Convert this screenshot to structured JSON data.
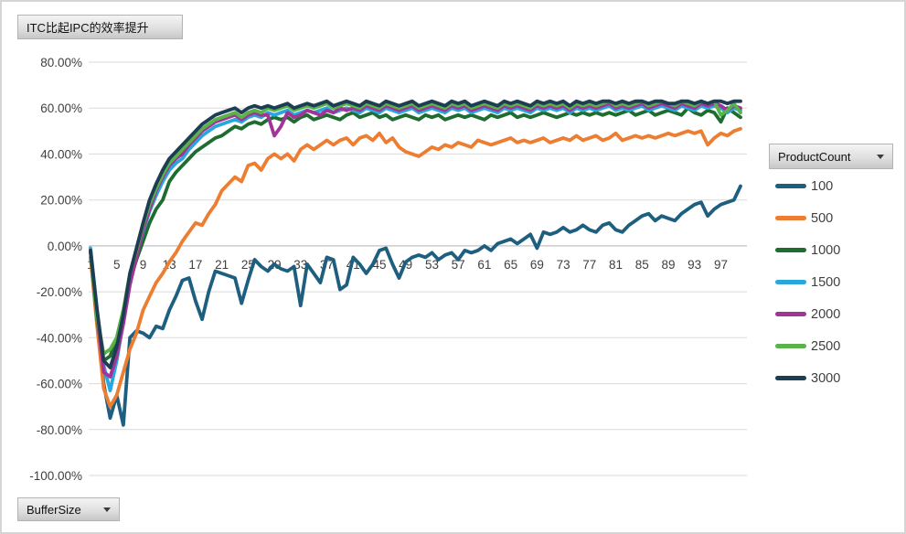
{
  "chart": {
    "value_field_button": "ITC比起IPC的效率提升",
    "legend_field_button": "ProductCount",
    "axis_field_button": "BufferSize"
  },
  "chart_data": {
    "type": "line",
    "title": "ITC比起IPC的效率提升",
    "legend_title": "ProductCount",
    "xlabel": "BufferSize",
    "ylabel": "",
    "grid": true,
    "legend_position": "right",
    "ylim": [
      -100,
      80
    ],
    "x_start": 1,
    "x_step": 1,
    "x_count": 100,
    "x_tick_values": [
      1,
      5,
      9,
      13,
      17,
      21,
      25,
      29,
      33,
      37,
      41,
      45,
      49,
      53,
      57,
      61,
      65,
      69,
      73,
      77,
      81,
      85,
      89,
      93,
      97
    ],
    "y_ticks": [
      {
        "value": 80,
        "label": "80.00%"
      },
      {
        "value": 60,
        "label": "60.00%"
      },
      {
        "value": 40,
        "label": "40.00%"
      },
      {
        "value": 20,
        "label": "20.00%"
      },
      {
        "value": 0,
        "label": "0.00%"
      },
      {
        "value": -20,
        "label": "-20.00%"
      },
      {
        "value": -40,
        "label": "-40.00%"
      },
      {
        "value": -60,
        "label": "-60.00%"
      },
      {
        "value": -80,
        "label": "-80.00%"
      },
      {
        "value": -100,
        "label": "-100.00%"
      }
    ],
    "series": [
      {
        "name": "100",
        "color": "#1E5F80",
        "values": [
          -2,
          -30,
          -60,
          -75,
          -65,
          -78,
          -40,
          -37,
          -38,
          -40,
          -35,
          -36,
          -28,
          -22,
          -15,
          -14,
          -24,
          -32,
          -20,
          -11,
          -12,
          -13,
          -14,
          -25,
          -15,
          -6,
          -9,
          -11,
          -8,
          -10,
          -11,
          -9,
          -26,
          -8,
          -12,
          -16,
          -5,
          -6,
          -19,
          -17,
          -5,
          -8,
          -12,
          -8,
          -2,
          -1,
          -8,
          -14,
          -7,
          -5,
          -4,
          -5,
          -3,
          -6,
          -4,
          -3,
          -6,
          -2,
          -3,
          -2,
          0,
          -2,
          1,
          2,
          3,
          1,
          3,
          5,
          -1,
          6,
          5,
          6,
          8,
          6,
          7,
          9,
          7,
          6,
          9,
          10,
          7,
          6,
          9,
          11,
          13,
          14,
          11,
          13,
          12,
          11,
          14,
          16,
          18,
          19,
          13,
          16,
          18,
          19,
          20,
          26
        ]
      },
      {
        "name": "500",
        "color": "#ED7D31",
        "values": [
          -5,
          -35,
          -62,
          -70,
          -65,
          -55,
          -45,
          -38,
          -28,
          -22,
          -16,
          -12,
          -7,
          -3,
          2,
          6,
          10,
          9,
          14,
          18,
          24,
          27,
          30,
          28,
          35,
          36,
          33,
          38,
          40,
          38,
          40,
          37,
          42,
          44,
          42,
          44,
          46,
          44,
          46,
          47,
          44,
          47,
          48,
          46,
          49,
          45,
          47,
          43,
          41,
          40,
          39,
          41,
          43,
          42,
          44,
          43,
          45,
          44,
          43,
          46,
          45,
          44,
          45,
          46,
          47,
          45,
          46,
          45,
          46,
          47,
          45,
          46,
          47,
          46,
          48,
          46,
          47,
          48,
          46,
          47,
          49,
          46,
          47,
          48,
          47,
          48,
          47,
          48,
          49,
          48,
          49,
          50,
          49,
          50,
          44,
          47,
          49,
          48,
          50,
          51
        ]
      },
      {
        "name": "1000",
        "color": "#1E6C30",
        "values": [
          -3,
          -32,
          -50,
          -48,
          -40,
          -28,
          -15,
          -6,
          2,
          10,
          16,
          20,
          28,
          32,
          35,
          38,
          41,
          43,
          45,
          47,
          48,
          50,
          52,
          51,
          53,
          54,
          53,
          55,
          56,
          55,
          56,
          54,
          56,
          57,
          55,
          56,
          57,
          56,
          55,
          57,
          58,
          56,
          57,
          58,
          56,
          57,
          55,
          56,
          57,
          56,
          55,
          57,
          56,
          57,
          55,
          56,
          57,
          56,
          57,
          56,
          55,
          57,
          56,
          57,
          58,
          56,
          57,
          56,
          57,
          58,
          57,
          56,
          57,
          58,
          57,
          58,
          57,
          58,
          57,
          58,
          57,
          58,
          59,
          57,
          58,
          59,
          57,
          58,
          59,
          58,
          57,
          60,
          58,
          57,
          59,
          58,
          54,
          60,
          58,
          56
        ]
      },
      {
        "name": "1500",
        "color": "#29A7DD",
        "values": [
          -1,
          -28,
          -52,
          -63,
          -50,
          -33,
          -15,
          -4,
          6,
          15,
          22,
          28,
          33,
          36,
          38,
          42,
          45,
          48,
          50,
          52,
          53,
          54,
          55,
          54,
          56,
          57,
          56,
          58,
          57,
          58,
          59,
          57,
          58,
          59,
          58,
          59,
          60,
          58,
          59,
          60,
          59,
          58,
          60,
          59,
          58,
          60,
          59,
          58,
          59,
          60,
          58,
          59,
          60,
          59,
          58,
          60,
          59,
          60,
          58,
          59,
          60,
          59,
          58,
          60,
          59,
          60,
          59,
          58,
          60,
          59,
          60,
          59,
          60,
          58,
          60,
          59,
          60,
          59,
          60,
          61,
          59,
          60,
          59,
          60,
          61,
          59,
          60,
          61,
          60,
          59,
          61,
          60,
          59,
          61,
          60,
          61,
          60,
          58,
          60,
          59
        ]
      },
      {
        "name": "2000",
        "color": "#A23397",
        "values": [
          -2,
          -30,
          -55,
          -57,
          -48,
          -34,
          -17,
          -5,
          7,
          16,
          24,
          30,
          35,
          38,
          40,
          44,
          47,
          50,
          52,
          54,
          55,
          56,
          57,
          55,
          57,
          58,
          57,
          57,
          48,
          52,
          58,
          56,
          57,
          59,
          58,
          57,
          59,
          58,
          60,
          59,
          60,
          59,
          61,
          60,
          59,
          61,
          60,
          59,
          60,
          61,
          59,
          60,
          61,
          60,
          59,
          61,
          60,
          61,
          59,
          60,
          61,
          60,
          59,
          61,
          60,
          61,
          60,
          59,
          61,
          60,
          61,
          60,
          61,
          59,
          61,
          60,
          61,
          60,
          61,
          62,
          60,
          61,
          60,
          61,
          62,
          60,
          61,
          62,
          61,
          60,
          62,
          61,
          60,
          62,
          61,
          62,
          61,
          59,
          61,
          60
        ]
      },
      {
        "name": "2500",
        "color": "#58B349",
        "values": [
          -2,
          -31,
          -47,
          -45,
          -40,
          -28,
          -12,
          -2,
          9,
          18,
          25,
          31,
          36,
          39,
          42,
          45,
          48,
          51,
          53,
          55,
          56,
          57,
          58,
          56,
          58,
          59,
          58,
          60,
          59,
          60,
          61,
          59,
          60,
          61,
          60,
          61,
          62,
          60,
          61,
          62,
          61,
          60,
          62,
          61,
          60,
          62,
          61,
          60,
          61,
          62,
          60,
          61,
          62,
          61,
          60,
          62,
          61,
          62,
          60,
          61,
          62,
          61,
          60,
          62,
          61,
          62,
          61,
          60,
          62,
          61,
          62,
          61,
          62,
          60,
          62,
          61,
          62,
          61,
          62,
          63,
          61,
          62,
          61,
          62,
          63,
          61,
          62,
          63,
          62,
          61,
          63,
          62,
          61,
          63,
          62,
          63,
          57,
          59,
          62,
          58
        ]
      },
      {
        "name": "3000",
        "color": "#1C3D52",
        "values": [
          -2,
          -28,
          -50,
          -53,
          -44,
          -30,
          -12,
          -1,
          10,
          20,
          27,
          33,
          38,
          41,
          44,
          47,
          50,
          53,
          55,
          57,
          58,
          59,
          60,
          58,
          60,
          61,
          60,
          61,
          60,
          61,
          62,
          60,
          61,
          62,
          61,
          62,
          63,
          61,
          62,
          63,
          62,
          61,
          63,
          62,
          61,
          63,
          62,
          61,
          62,
          63,
          61,
          62,
          63,
          62,
          61,
          63,
          62,
          63,
          61,
          62,
          63,
          62,
          61,
          63,
          62,
          63,
          62,
          61,
          63,
          62,
          63,
          62,
          63,
          61,
          63,
          62,
          63,
          62,
          63,
          63,
          62,
          63,
          62,
          63,
          63,
          62,
          63,
          63,
          62,
          62,
          63,
          63,
          62,
          63,
          62,
          63,
          63,
          62,
          63,
          63
        ]
      }
    ]
  }
}
